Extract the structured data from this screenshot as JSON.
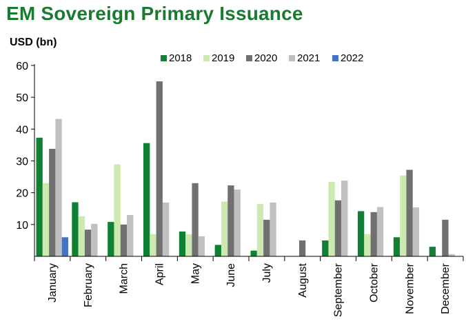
{
  "header": {
    "title": "EM Sovereign Primary Issuance",
    "unit": "USD (bn)"
  },
  "colors": {
    "2018": "#108034",
    "2019": "#cce9b0",
    "2020": "#707070",
    "2021": "#c0c0c0",
    "2022": "#4472c4"
  },
  "chart_data": {
    "type": "bar",
    "title": "EM Sovereign Primary Issuance",
    "ylabel": "USD (bn)",
    "xlabel": "",
    "ylim": [
      0,
      60
    ],
    "yticks": [
      10,
      20,
      30,
      40,
      50,
      60
    ],
    "legend_position": "top",
    "categories": [
      "January",
      "February",
      "March",
      "April",
      "May",
      "June",
      "July",
      "August",
      "September",
      "October",
      "November",
      "December"
    ],
    "series": [
      {
        "name": "2018",
        "values": [
          37.3,
          17.0,
          10.8,
          35.6,
          7.8,
          3.6,
          1.8,
          0,
          5.0,
          14.2,
          6.0,
          3.0
        ]
      },
      {
        "name": "2019",
        "values": [
          23.0,
          12.6,
          28.9,
          7.0,
          6.9,
          17.2,
          16.5,
          0,
          23.4,
          7.0,
          25.4,
          0
        ]
      },
      {
        "name": "2020",
        "values": [
          33.8,
          8.4,
          10.0,
          55.0,
          23.0,
          22.3,
          11.5,
          5.0,
          17.6,
          13.9,
          27.2,
          11.5
        ]
      },
      {
        "name": "2021",
        "values": [
          43.2,
          10.2,
          13.0,
          16.9,
          6.3,
          21.0,
          16.9,
          0,
          23.8,
          15.5,
          15.4,
          0.7
        ]
      },
      {
        "name": "2022",
        "values": [
          6.0,
          0,
          0,
          0,
          0,
          0,
          0,
          0,
          0,
          0,
          0,
          0
        ]
      }
    ]
  }
}
